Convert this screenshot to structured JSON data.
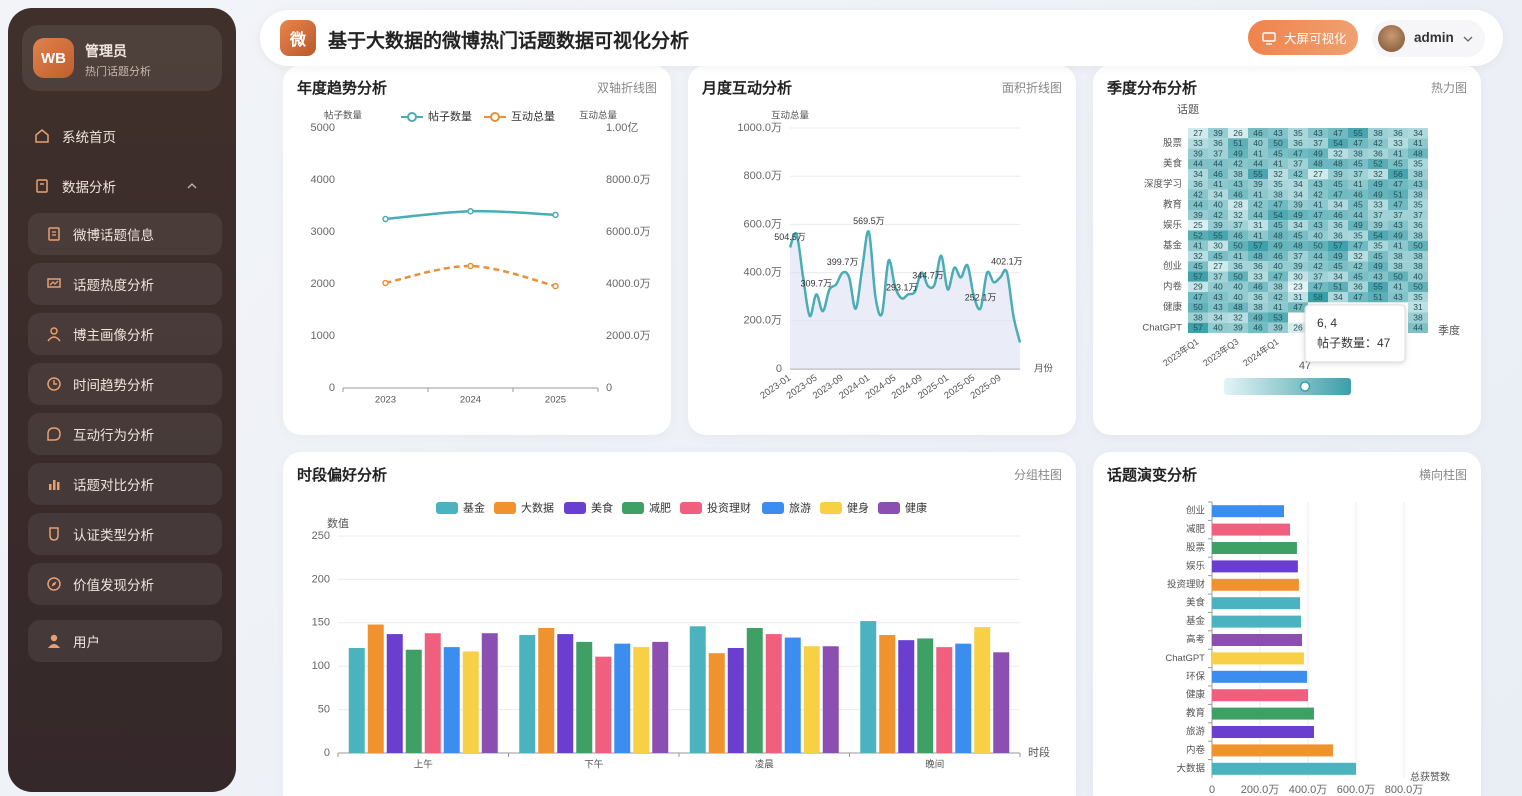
{
  "sidebar": {
    "logo": "WB",
    "name": "管理员",
    "subtitle": "热门话题分析",
    "menu": [
      {
        "label": "系统首页"
      },
      {
        "label": "数据分析",
        "children": [
          {
            "label": "微博话题信息"
          },
          {
            "label": "话题热度分析"
          },
          {
            "label": "博主画像分析"
          },
          {
            "label": "时间趋势分析"
          },
          {
            "label": "互动行为分析"
          },
          {
            "label": "话题对比分析"
          },
          {
            "label": "认证类型分析"
          },
          {
            "label": "价值发现分析"
          }
        ]
      },
      {
        "label": "用户"
      }
    ]
  },
  "header": {
    "logo": "微",
    "title": "基于大数据的微博热门话题数据可视化分析",
    "button": "大屏可视化",
    "user": "admin"
  },
  "chart_data": [
    {
      "type": "line",
      "title": "年度趋势分析",
      "tag": "双轴折线图",
      "smooth": true,
      "categories": [
        "2023",
        "2024",
        "2025"
      ],
      "series": [
        {
          "name": "帖子数量",
          "color": "#4aacb4",
          "values": [
            3250,
            3400,
            3330
          ],
          "dashed": false
        },
        {
          "name": "互动总量",
          "color": "#e8913a",
          "values": [
            4040,
            4690,
            3920
          ],
          "axis": "y2",
          "dashed": true
        }
      ],
      "ylabel": "帖子数量",
      "y2label": "互动总量",
      "ylim": [
        0,
        5000
      ],
      "yticks": [
        0,
        1000,
        2000,
        3000,
        4000,
        5000
      ],
      "y2lim": [
        0,
        10000
      ],
      "y2ticks": [
        0,
        {
          "value": 2000,
          "label": "2000.0万"
        },
        {
          "value": 4000,
          "label": "4000.0万"
        },
        {
          "value": 6000,
          "label": "6000.0万"
        },
        {
          "value": 8000,
          "label": "8000.0万"
        },
        {
          "value": 10000,
          "label": "1.00亿"
        }
      ],
      "grid": false
    },
    {
      "type": "area",
      "title": "月度互动分析",
      "tag": "面积折线图",
      "color": "#4aacb4",
      "smooth": true,
      "categories": [
        "2023-01",
        null,
        null,
        null,
        "2023-05",
        null,
        null,
        null,
        "2023-09",
        null,
        null,
        null,
        "2024-01",
        null,
        null,
        null,
        "2024-05",
        null,
        null,
        null,
        "2024-09",
        null,
        null,
        null,
        "2025-01",
        null,
        null,
        null,
        "2025-05",
        null,
        null,
        null,
        "2025-09",
        null,
        null,
        null
      ],
      "values": [
        504.5,
        560,
        380,
        220,
        309.7,
        240,
        330,
        350,
        399.7,
        380,
        250,
        420,
        569.5,
        300,
        230,
        450,
        340,
        293.1,
        310,
        320,
        400,
        344.7,
        350,
        470,
        330,
        420,
        380,
        430,
        300,
        252.1,
        400,
        360,
        380,
        402.1,
        220,
        110
      ],
      "value_labels": [
        "504.5万",
        null,
        null,
        null,
        "309.7万",
        null,
        null,
        null,
        "399.7万",
        null,
        null,
        null,
        "569.5万",
        null,
        null,
        null,
        null,
        "293.1万",
        null,
        null,
        null,
        "344.7万",
        null,
        null,
        null,
        null,
        null,
        null,
        null,
        "252.1万",
        null,
        null,
        null,
        "402.1万",
        null,
        null
      ],
      "ylabel": "互动总量",
      "xlabel": "月份",
      "ylim": [
        0,
        1000
      ],
      "yticks": [
        0,
        {
          "value": 200,
          "label": "200.0万"
        },
        {
          "value": 400,
          "label": "400.0万"
        },
        {
          "value": 600,
          "label": "600.0万"
        },
        {
          "value": 800,
          "label": "800.0万"
        },
        {
          "value": 1000,
          "label": "1000.0万"
        }
      ],
      "grid": true
    },
    {
      "type": "heatmap",
      "title": "季度分布分析",
      "tag": "热力图",
      "xlabel": "季度",
      "ylabel": "话题",
      "colors": [
        "#e4f4f5",
        "#3b9fa9"
      ],
      "x": [
        "2023年Q1",
        null,
        "2023年Q3",
        null,
        "2024年Q1",
        null,
        null,
        null,
        null,
        null,
        null,
        null
      ],
      "y": [
        null,
        "股票",
        null,
        "美食",
        null,
        "深度学习",
        null,
        "教育",
        null,
        "娱乐",
        null,
        "基金",
        null,
        "创业",
        null,
        "内卷",
        null,
        "健康",
        null,
        "ChatGPT"
      ],
      "values": [
        [
          27,
          39,
          26,
          46,
          43,
          35,
          43,
          47,
          55,
          38,
          36,
          34
        ],
        [
          33,
          36,
          51,
          40,
          50,
          36,
          37,
          54,
          47,
          42,
          33,
          41
        ],
        [
          39,
          37,
          49,
          41,
          45,
          47,
          49,
          32,
          38,
          36,
          41,
          48
        ],
        [
          44,
          44,
          42,
          44,
          41,
          37,
          48,
          48,
          45,
          52,
          45,
          35
        ],
        [
          34,
          46,
          38,
          55,
          32,
          42,
          27,
          39,
          37,
          32,
          56,
          38
        ],
        [
          36,
          41,
          43,
          39,
          35,
          34,
          43,
          45,
          41,
          49,
          47,
          43
        ],
        [
          42,
          34,
          46,
          41,
          38,
          34,
          42,
          47,
          46,
          49,
          51,
          38
        ],
        [
          44,
          40,
          28,
          42,
          47,
          39,
          41,
          34,
          45,
          33,
          47,
          35
        ],
        [
          39,
          42,
          32,
          44,
          54,
          49,
          47,
          46,
          44,
          37,
          37,
          37
        ],
        [
          25,
          39,
          37,
          31,
          45,
          34,
          43,
          36,
          49,
          39,
          43,
          36
        ],
        [
          52,
          55,
          46,
          41,
          48,
          45,
          40,
          36,
          35,
          54,
          49,
          38
        ],
        [
          41,
          30,
          50,
          57,
          49,
          48,
          50,
          57,
          47,
          35,
          41,
          50
        ],
        [
          32,
          45,
          41,
          48,
          46,
          37,
          44,
          49,
          32,
          45,
          38,
          38
        ],
        [
          45,
          27,
          36,
          36,
          40,
          39,
          42,
          45,
          42,
          49,
          38,
          38
        ],
        [
          57,
          37,
          50,
          33,
          47,
          30,
          37,
          34,
          45,
          43,
          50,
          40
        ],
        [
          29,
          40,
          40,
          46,
          38,
          23,
          47,
          51,
          36,
          55,
          41,
          50
        ],
        [
          47,
          43,
          40,
          36,
          42,
          31,
          58,
          34,
          47,
          51,
          43,
          35
        ],
        [
          50,
          43,
          48,
          38,
          41,
          47,
          null,
          null,
          null,
          null,
          null,
          31
        ],
        [
          38,
          34,
          32,
          49,
          53,
          null,
          null,
          null,
          null,
          null,
          null,
          38
        ],
        [
          57,
          40,
          39,
          46,
          39,
          26,
          null,
          null,
          null,
          null,
          null,
          44
        ]
      ],
      "visualmap_label": "47",
      "tooltip": {
        "title": "6, 4",
        "text": "帖子数量：47"
      }
    },
    {
      "type": "bar",
      "title": "时段偏好分析",
      "tag": "分组柱图",
      "ylabel": "数值",
      "xlabel": "时段",
      "categories": [
        "上午",
        "下午",
        "凌晨",
        "晚间"
      ],
      "series": [
        {
          "name": "基金",
          "color": "#4ab3bf",
          "values": [
            121,
            136,
            146,
            152
          ]
        },
        {
          "name": "大数据",
          "color": "#f0922e",
          "values": [
            148,
            144,
            115,
            136
          ]
        },
        {
          "name": "美食",
          "color": "#6a3fd0",
          "values": [
            137,
            137,
            121,
            130
          ]
        },
        {
          "name": "减肥",
          "color": "#3fa066",
          "values": [
            119,
            128,
            144,
            132
          ]
        },
        {
          "name": "投资理财",
          "color": "#f0607e",
          "values": [
            138,
            111,
            137,
            122
          ]
        },
        {
          "name": "旅游",
          "color": "#3b8ef0",
          "values": [
            122,
            126,
            133,
            126
          ]
        },
        {
          "name": "健身",
          "color": "#f7d046",
          "values": [
            117,
            122,
            123,
            145
          ]
        },
        {
          "name": "健康",
          "color": "#8a4fb0",
          "values": [
            138,
            128,
            123,
            116
          ]
        }
      ],
      "ylim": [
        0,
        250
      ],
      "yticks": [
        0,
        50,
        100,
        150,
        200,
        250
      ],
      "grid": true
    },
    {
      "type": "barh",
      "title": "话题演变分析",
      "tag": "横向柱图",
      "xlabel": "总获赞数",
      "categories": [
        "创业",
        "减肥",
        "股票",
        "娱乐",
        "投资理财",
        "美食",
        "基金",
        "高考",
        "ChatGPT",
        "环保",
        "健康",
        "教育",
        "旅游",
        "内卷",
        "大数据"
      ],
      "values": [
        300,
        325,
        354,
        358,
        362,
        367,
        371,
        375,
        383,
        396,
        400,
        425,
        425,
        504,
        600
      ],
      "colors": [
        "#3b8ef0",
        "#f0607e",
        "#3fa066",
        "#6a3fd0",
        "#f0922e",
        "#4ab3bf",
        "#4ab3bf",
        "#8a4fb0",
        "#f7d046",
        "#3b8ef0",
        "#f0607e",
        "#3fa066",
        "#6a3fd0",
        "#f0922e",
        "#4ab3bf"
      ],
      "xlim": [
        0,
        900
      ],
      "xticks": [
        0,
        {
          "value": 200,
          "label": "200.0万"
        },
        {
          "value": 400,
          "label": "400.0万"
        },
        {
          "value": 600,
          "label": "600.0万"
        },
        {
          "value": 800,
          "label": "800.0万"
        }
      ],
      "grid": true
    }
  ]
}
